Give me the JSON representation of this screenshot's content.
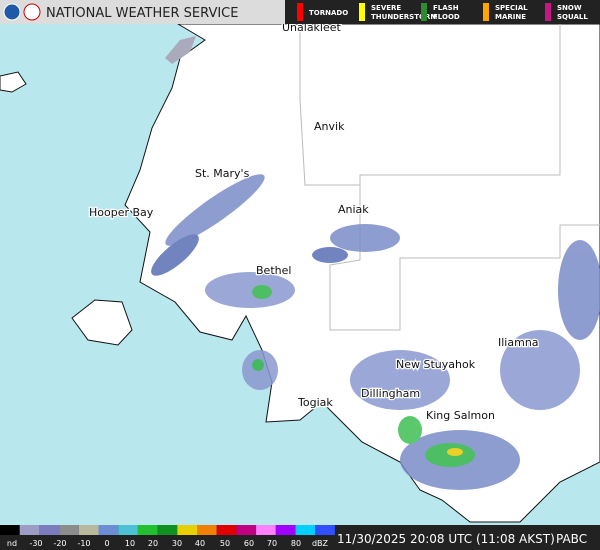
{
  "header": {
    "title": "NATIONAL WEATHER SERVICE"
  },
  "warnings": [
    {
      "label": "TORNADO",
      "color": "#ff0000"
    },
    {
      "label": "SEVERE THUNDERSTORM",
      "color": "#ffff00"
    },
    {
      "label": "FLASH FLOOD",
      "color": "#2e8b2e"
    },
    {
      "label": "SPECIAL MARINE",
      "color": "#ffa500"
    },
    {
      "label": "SNOW SQUALL",
      "color": "#c71585"
    }
  ],
  "towns": [
    "Unalakleet",
    "Anvik",
    "St. Mary's",
    "Aniak",
    "Hooper Bay",
    "Bethel",
    "Iliamna",
    "New Stuyahok",
    "Dillingham",
    "Togiak",
    "King Salmon"
  ],
  "colorbar": {
    "labels": [
      "nd",
      "-30",
      "-20",
      "-10",
      "0",
      "10",
      "20",
      "30",
      "40",
      "50",
      "60",
      "70",
      "80",
      "dBZ"
    ]
  },
  "footer": {
    "timestamp": "11/30/2025 20:08 UTC (11:08 AKST)",
    "station": "PABC"
  }
}
